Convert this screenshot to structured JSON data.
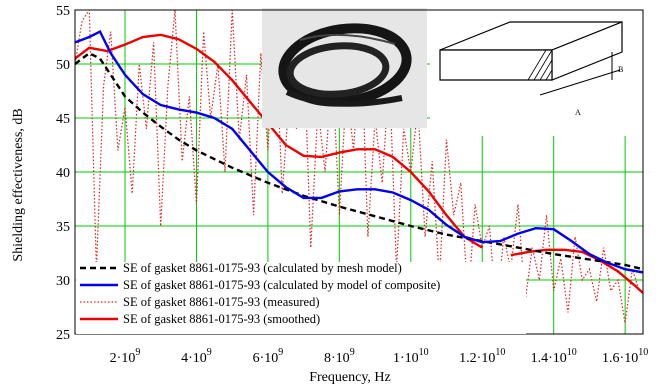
{
  "chart_data": {
    "type": "line",
    "xlabel": "Frequency, Hz",
    "ylabel": "Shielding effectiveness, dB",
    "xlim": [
      600000000,
      16500000000
    ],
    "ylim": [
      25,
      55
    ],
    "grid": true,
    "legend_position": "bottom-left",
    "x_ticks": [
      {
        "value": 2000000000,
        "label": "2·10",
        "exp": "9"
      },
      {
        "value": 4000000000,
        "label": "4·10",
        "exp": "9"
      },
      {
        "value": 6000000000,
        "label": "6·10",
        "exp": "9"
      },
      {
        "value": 8000000000,
        "label": "8·10",
        "exp": "9"
      },
      {
        "value": 10000000000,
        "label": "1·10",
        "exp": "10"
      },
      {
        "value": 12000000000,
        "label": "1.2·10",
        "exp": "10"
      },
      {
        "value": 14000000000,
        "label": "1.4·10",
        "exp": "10"
      },
      {
        "value": 16000000000,
        "label": "1.6·10",
        "exp": "10"
      }
    ],
    "y_ticks": [
      25,
      30,
      35,
      40,
      45,
      50,
      55
    ],
    "series": [
      {
        "name": "SE of gasket 8861-0175-93 (calculated by mesh model)",
        "color": "#000000",
        "style": "dashed",
        "x": [
          600000000,
          1000000000,
          1300000000,
          1600000000,
          2000000000,
          2500000000,
          3000000000,
          3500000000,
          4000000000,
          5000000000,
          6000000000,
          7000000000,
          8000000000,
          9000000000,
          10000000000,
          11000000000,
          12000000000,
          13000000000,
          14000000000,
          15000000000,
          16000000000,
          16500000000
        ],
        "y": [
          50,
          51,
          50.5,
          49,
          47,
          45.5,
          44.2,
          43,
          42,
          40.4,
          39,
          37.8,
          36.8,
          35.9,
          35,
          34.2,
          33.6,
          33,
          32.4,
          31.9,
          31.4,
          31
        ]
      },
      {
        "name": "SE of gasket 8861-0175-93 (calculated by model of composite)",
        "color": "#0000ee",
        "style": "solid",
        "x": [
          600000000,
          1000000000,
          1300000000,
          1600000000,
          2000000000,
          2500000000,
          3000000000,
          3500000000,
          4000000000,
          4500000000,
          5000000000,
          5500000000,
          6000000000,
          6500000000,
          7000000000,
          7500000000,
          8000000000,
          8500000000,
          9000000000,
          9500000000,
          10000000000,
          10500000000,
          11000000000,
          11500000000,
          12000000000,
          12500000000,
          13000000000,
          13500000000,
          14000000000,
          14500000000,
          15000000000,
          15500000000,
          16000000000,
          16500000000
        ],
        "y": [
          52,
          52.5,
          53,
          51,
          49,
          47.2,
          46.2,
          45.8,
          45.5,
          45,
          44,
          42,
          40,
          38.6,
          37.6,
          37.6,
          38.2,
          38.4,
          38.4,
          38.1,
          37.4,
          36.5,
          35.1,
          34,
          33.5,
          33.6,
          34.3,
          34.8,
          34.7,
          33.6,
          32.4,
          31.6,
          31,
          30.7
        ]
      },
      {
        "name": "SE of gasket 8861-0175-93 (measured)",
        "color": "#e02020",
        "style": "dotted",
        "x": [
          600000000,
          800000000,
          1000000000,
          1200000000,
          1400000000,
          1600000000,
          1800000000,
          2000000000,
          2200000000,
          2400000000,
          2600000000,
          2800000000,
          3000000000,
          3200000000,
          3400000000,
          3600000000,
          3800000000,
          4000000000,
          4200000000,
          4400000000,
          4600000000,
          4800000000,
          5000000000,
          5200000000,
          5400000000,
          5600000000,
          5800000000,
          6000000000,
          6200000000,
          6400000000,
          6600000000,
          6800000000,
          7000000000,
          7200000000,
          7400000000,
          7600000000,
          7800000000,
          8000000000,
          8200000000,
          8400000000,
          8600000000,
          8800000000,
          9000000000,
          9200000000,
          9400000000,
          9600000000,
          9800000000,
          10000000000,
          10200000000,
          10400000000,
          10600000000,
          10800000000,
          11000000000,
          11200000000,
          11400000000,
          11600000000,
          11800000000,
          12000000000,
          12200000000,
          12400000000,
          12600000000,
          12800000000,
          13000000000,
          13200000000,
          13400000000,
          13600000000,
          13800000000,
          14000000000,
          14200000000,
          14400000000,
          14600000000,
          14800000000,
          15000000000,
          15200000000,
          15400000000,
          15600000000,
          15800000000,
          16000000000,
          16200000000,
          16400000000
        ],
        "y": [
          50,
          54,
          55,
          31,
          48,
          53,
          42,
          46,
          38,
          50,
          44,
          52,
          35,
          48,
          55,
          41,
          47,
          37,
          53,
          45,
          50,
          40,
          55,
          43,
          49,
          36,
          51,
          42,
          54,
          38,
          47,
          44,
          52,
          33,
          46,
          40,
          50,
          36,
          48,
          42,
          53,
          34,
          45,
          39,
          49,
          31,
          44,
          40,
          46,
          34,
          41,
          30,
          43,
          36,
          39,
          28,
          37,
          33,
          35,
          27,
          34,
          31,
          37,
          28,
          33,
          30,
          36,
          29,
          32,
          27,
          34,
          30,
          31,
          28,
          33,
          29,
          30,
          26,
          31,
          29
        ]
      },
      {
        "name": "SE of gasket 8861-0175-93 (smoothed)",
        "color": "#ee0000",
        "style": "solid",
        "x": [
          600000000,
          1000000000,
          1500000000,
          2000000000,
          2500000000,
          3000000000,
          3500000000,
          4000000000,
          4500000000,
          5000000000,
          5500000000,
          6000000000,
          6500000000,
          7000000000,
          7500000000,
          8000000000,
          8500000000,
          9000000000,
          9500000000,
          10000000000,
          10500000000,
          11000000000,
          11500000000,
          12000000000
        ],
        "y": [
          50.5,
          51.5,
          51.2,
          51.8,
          52.5,
          52.7,
          52.3,
          51.4,
          50.2,
          48.5,
          46.5,
          44.5,
          42.5,
          41.5,
          41.4,
          41.8,
          42.1,
          42.1,
          41.4,
          40,
          38.2,
          36,
          34,
          33
        ],
        "x2": [
          12800000000,
          13300000000,
          13800000000,
          14300000000,
          14800000000,
          15300000000,
          15800000000,
          16300000000,
          16500000000
        ],
        "y2": [
          32.3,
          32.6,
          32.8,
          32.8,
          32.6,
          31.8,
          30.8,
          29.4,
          28.8
        ]
      }
    ]
  }
}
